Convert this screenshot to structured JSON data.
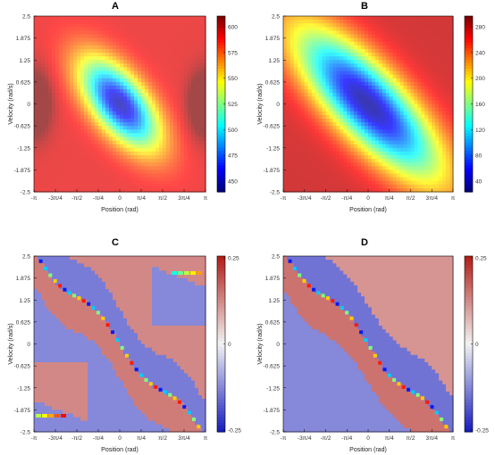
{
  "figure": {
    "panels": [
      {
        "id": "A",
        "title": "A",
        "xlabel": "Position (rad)",
        "ylabel": "Velocity (rad/s)",
        "xticks": [
          "-π",
          "-3π/4",
          "-π/2",
          "-π/4",
          "0",
          "π/4",
          "π/2",
          "3π/4",
          "π"
        ],
        "yticks": [
          "2.5",
          "1.875",
          "1.25",
          "0.625",
          "0",
          "-0.625",
          "-1.25",
          "-1.875",
          "-2.5"
        ],
        "colorbar_ticks": [
          "600",
          "575",
          "550",
          "525",
          "500",
          "475",
          "450"
        ],
        "colormap": "jet_pastel"
      },
      {
        "id": "B",
        "title": "B",
        "xlabel": "Position (rad)",
        "ylabel": "Velocity (rad/s)",
        "xticks": [
          "-π",
          "-3π/4",
          "-π/2",
          "-π/4",
          "0",
          "π/4",
          "π/2",
          "3π/4",
          "π"
        ],
        "yticks": [
          "2.5",
          "1.875",
          "1.25",
          "0.625",
          "0",
          "-0.625",
          "-1.25",
          "-1.875",
          "-2.5"
        ],
        "colorbar_ticks": [
          "280",
          "240",
          "200",
          "160",
          "120",
          "80",
          "40"
        ],
        "colormap": "jet_pastel"
      },
      {
        "id": "C",
        "title": "C",
        "xlabel": "Position (rad)",
        "ylabel": "Velocity (rad/s)",
        "xticks": [
          "-π",
          "-3π/4",
          "-π/2",
          "-π/4",
          "0",
          "π/4",
          "π/2",
          "3π/4",
          "π"
        ],
        "yticks": [
          "2.5",
          "1.875",
          "1.25",
          "0.625",
          "0",
          "-0.625",
          "-1.25",
          "-1.875",
          "-2.5"
        ],
        "colorbar_ticks": [
          "0.25",
          "0",
          "-0.25"
        ],
        "colormap": "bwr"
      },
      {
        "id": "D",
        "title": "D",
        "xlabel": "Position (rad)",
        "ylabel": "Velocity (rad/s)",
        "xticks": [
          "-π",
          "-3π/4",
          "-π/2",
          "-π/4",
          "0",
          "π/4",
          "π/2",
          "3π/4",
          "π"
        ],
        "yticks": [
          "2.5",
          "1.875",
          "1.25",
          "0.625",
          "0",
          "-0.625",
          "-1.25",
          "-1.875",
          "-2.5"
        ],
        "colorbar_ticks": [
          "0.25",
          "0",
          "-0.25"
        ],
        "colormap": "bwr"
      }
    ]
  },
  "chart_data": [
    {
      "type": "heatmap",
      "title": "A",
      "xlabel": "Position (rad)",
      "ylabel": "Velocity (rad/s)",
      "xlim": [
        -3.1416,
        3.1416
      ],
      "ylim": [
        -2.5,
        2.5
      ],
      "zlim": [
        440,
        610
      ],
      "description_of_surface": "minimum at (0,0) elongated along the diagonal from upper-left to lower-right",
      "min_location": [
        0,
        0
      ],
      "min_value": 450,
      "max_value": 600
    },
    {
      "type": "heatmap",
      "title": "B",
      "xlabel": "Position (rad)",
      "ylabel": "Velocity (rad/s)",
      "xlim": [
        -3.1416,
        3.1416
      ],
      "ylim": [
        -2.5,
        2.5
      ],
      "zlim": [
        20,
        300
      ],
      "min_location": [
        0,
        0
      ],
      "min_value": 40,
      "max_value": 280
    },
    {
      "type": "heatmap",
      "title": "C",
      "xlabel": "Position (rad)",
      "ylabel": "Velocity (rad/s)",
      "xlim": [
        -3.1416,
        3.1416
      ],
      "ylim": [
        -2.5,
        2.5
      ],
      "zlim": [
        -0.25,
        0.25
      ],
      "values_shown": [
        -0.25,
        0.25
      ]
    },
    {
      "type": "heatmap",
      "title": "D",
      "xlabel": "Position (rad)",
      "ylabel": "Velocity (rad/s)",
      "xlim": [
        -3.1416,
        3.1416
      ],
      "ylim": [
        -2.5,
        2.5
      ],
      "zlim": [
        -0.25,
        0.25
      ],
      "values_shown": [
        -0.25,
        0.25
      ]
    }
  ]
}
